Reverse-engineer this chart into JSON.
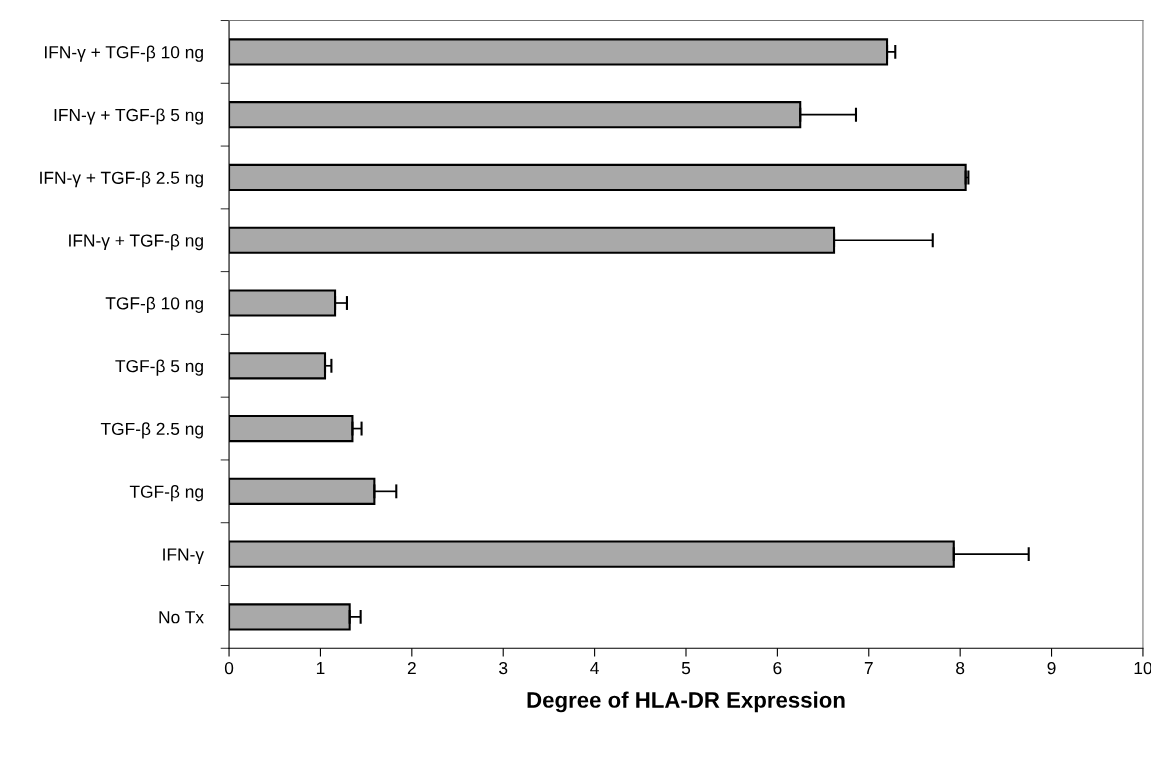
{
  "chart_data": {
    "type": "bar",
    "orientation": "horizontal",
    "xlabel": "Degree of HLA-DR Expression",
    "categories": [
      "IFN-γ + TGF-β 10 ng",
      "IFN-γ + TGF-β 5 ng",
      "IFN-γ + TGF-β 2.5 ng",
      "IFN-γ + TGF-β ng",
      "TGF-β 10 ng",
      "TGF-β 5 ng",
      "TGF-β 2.5 ng",
      "TGF-β ng",
      "IFN-γ",
      "No Tx"
    ],
    "values": [
      7.2,
      6.25,
      8.06,
      6.62,
      1.16,
      1.05,
      1.35,
      1.59,
      7.93,
      1.32
    ],
    "errors": [
      [
        7.2,
        7.29
      ],
      [
        6.25,
        6.86
      ],
      [
        8.06,
        8.09
      ],
      [
        6.62,
        7.7
      ],
      [
        1.16,
        1.29
      ],
      [
        1.05,
        1.12
      ],
      [
        1.35,
        1.45
      ],
      [
        1.59,
        1.83
      ],
      [
        7.93,
        8.75
      ],
      [
        1.32,
        1.44
      ]
    ],
    "color": "#a9a9a9",
    "xlim": [
      0,
      10
    ],
    "xticks": [
      0,
      1,
      2,
      3,
      4,
      5,
      6,
      7,
      8,
      9,
      10
    ],
    "grid": false,
    "legend": false
  }
}
